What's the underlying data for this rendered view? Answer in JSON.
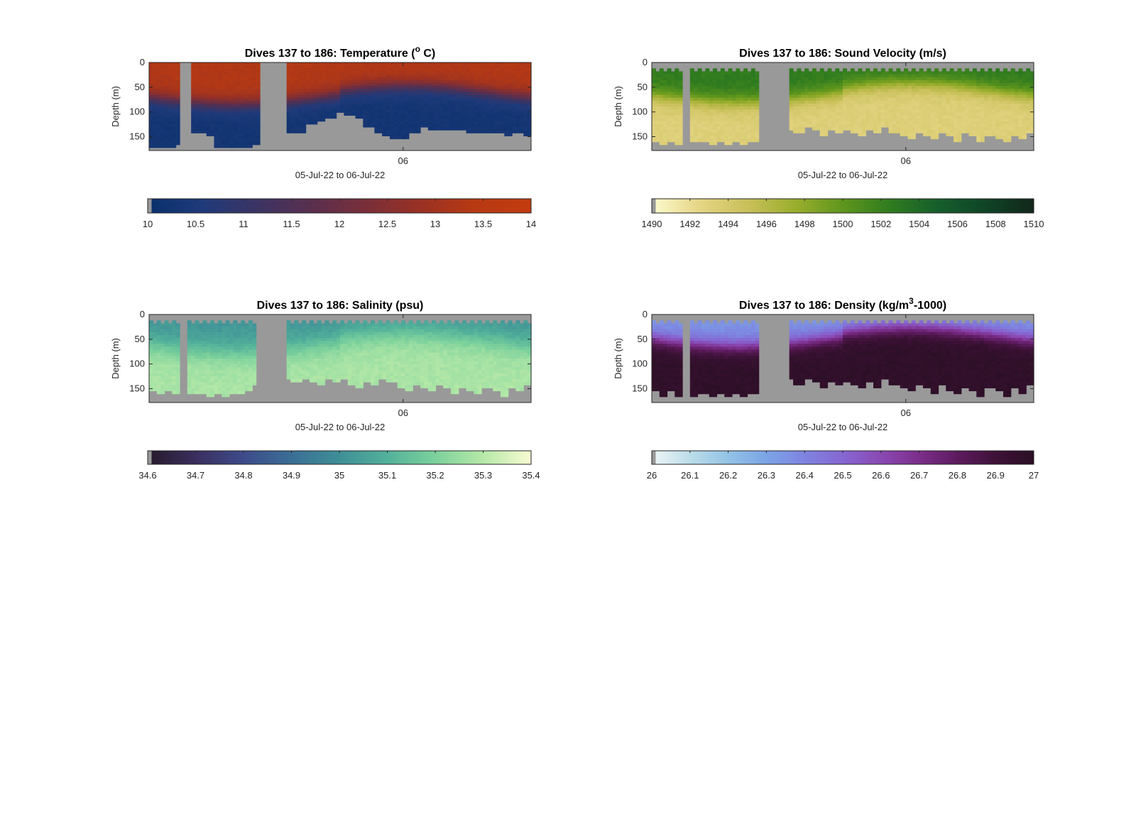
{
  "figure": {
    "background": "#ffffff",
    "missing_color": "#999999",
    "xtick": "06",
    "xlabel": "05-Jul-22 to 06-Jul-22"
  },
  "chart_data": [
    {
      "type": "heatmap",
      "title_parts": [
        "Dives 137 to 186: Temperature (",
        "o",
        " C)"
      ],
      "title_styles": [
        "normal",
        "sup",
        "normal"
      ],
      "ylabel": "Depth (m)",
      "yticks": [
        "0",
        "50",
        "100",
        "150"
      ],
      "ylim": [
        0,
        178
      ],
      "ydir": "reverse",
      "xtick_labels": [
        "06"
      ],
      "xlabel": "05-Jul-22 to 06-Jul-22",
      "colorbar": {
        "range": [
          10,
          14
        ],
        "ticks": [
          "10",
          "10.5",
          "11",
          "11.5",
          "12",
          "12.5",
          "13",
          "13.5",
          "14"
        ],
        "colors": [
          "#08306b",
          "#1f3a7a",
          "#3b3463",
          "#5a2f4e",
          "#7a2f39",
          "#9a3123",
          "#b83a13",
          "#c23b0e"
        ]
      },
      "surface_value": 13.3,
      "deep_value": 10.3,
      "cline_depth": 70,
      "cline_width": 35,
      "gaps": [
        [
          0.085,
          0.108
        ],
        [
          0.29,
          0.36
        ]
      ],
      "profile_bottoms": [
        170,
        170,
        170,
        168,
        140,
        145,
        150,
        175,
        175,
        173,
        172,
        168,
        150,
        148,
        145,
        144,
        140,
        125,
        120,
        115,
        100,
        105,
        110,
        130,
        145,
        150,
        152,
        153,
        140,
        128,
        135,
        138,
        138,
        137,
        140,
        140,
        143,
        142,
        147,
        145,
        148
      ]
    },
    {
      "type": "heatmap",
      "title_parts": [
        "Dives 137 to 186: Sound Velocity (m/s)"
      ],
      "title_styles": [
        "normal"
      ],
      "ylabel": "Depth (m)",
      "yticks": [
        "0",
        "50",
        "100",
        "150"
      ],
      "ylim": [
        0,
        178
      ],
      "ydir": "reverse",
      "xtick_labels": [
        "06"
      ],
      "xlabel": "05-Jul-22 to 06-Jul-22",
      "colorbar": {
        "range": [
          1490,
          1510
        ],
        "ticks": [
          "1490",
          "1492",
          "1494",
          "1496",
          "1498",
          "1500",
          "1502",
          "1504",
          "1506",
          "1508",
          "1510"
        ],
        "colors": [
          "#fdfbd0",
          "#e5d585",
          "#c9c05a",
          "#9aae2c",
          "#5f961d",
          "#2f7b1f",
          "#165e2c",
          "#0f4426",
          "#12261a"
        ]
      },
      "surface_value": 1502.5,
      "deep_value": 1493.2,
      "cline_depth": 65,
      "cline_width": 40,
      "gaps": [
        [
          0.08,
          0.1
        ],
        [
          0.28,
          0.36
        ]
      ],
      "profile_bottoms": [
        160,
        165,
        160,
        165,
        158,
        163,
        158,
        164,
        160,
        166,
        160,
        164,
        158,
        162,
        150,
        136,
        142,
        134,
        140,
        132,
        138,
        146,
        135,
        142,
        134,
        140,
        148,
        136,
        144,
        132,
        140,
        146,
        152,
        140,
        148,
        156,
        142,
        150,
        158,
        144,
        150,
        160,
        148,
        154,
        162,
        150,
        156,
        145
      ]
    },
    {
      "type": "heatmap",
      "title_parts": [
        "Dives 137 to 186: Salinity (psu)"
      ],
      "title_styles": [
        "normal"
      ],
      "ylabel": "Depth (m)",
      "yticks": [
        "0",
        "50",
        "100",
        "150"
      ],
      "ylim": [
        0,
        178
      ],
      "ydir": "reverse",
      "xtick_labels": [
        "06"
      ],
      "xlabel": "05-Jul-22 to 06-Jul-22",
      "colorbar": {
        "range": [
          34.6,
          35.4
        ],
        "ticks": [
          "34.6",
          "34.7",
          "34.8",
          "34.9",
          "35",
          "35.1",
          "35.2",
          "35.3",
          "35.4"
        ],
        "colors": [
          "#261a2b",
          "#3a2e5e",
          "#3d4b8a",
          "#3a6e95",
          "#3f8f97",
          "#52b19a",
          "#7cd19c",
          "#b6e9a8",
          "#f9fbd3"
        ]
      },
      "surface_value": 35.02,
      "deep_value": 35.28,
      "cline_depth": 60,
      "cline_width": 60,
      "gaps": [
        [
          0.082,
          0.102
        ],
        [
          0.28,
          0.36
        ]
      ],
      "profile_bottoms": [
        155,
        162,
        155,
        162,
        155,
        163,
        158,
        165,
        160,
        165,
        158,
        162,
        155,
        140,
        145,
        135,
        140,
        130,
        136,
        128,
        135,
        142,
        130,
        138,
        132,
        140,
        148,
        136,
        144,
        130,
        138,
        146,
        152,
        140,
        148,
        156,
        142,
        150,
        160,
        146,
        152,
        162,
        148,
        155,
        165,
        150,
        156,
        145
      ]
    },
    {
      "type": "heatmap",
      "title_parts": [
        "Dives 137 to 186: Density (kg/m",
        "3",
        "-1000)"
      ],
      "title_styles": [
        "normal",
        "sup",
        "normal"
      ],
      "ylabel": "Depth (m)",
      "yticks": [
        "0",
        "50",
        "100",
        "150"
      ],
      "ylim": [
        0,
        178
      ],
      "ydir": "reverse",
      "xtick_labels": [
        "06"
      ],
      "xlabel": "05-Jul-22 to 06-Jul-22",
      "colorbar": {
        "range": [
          26,
          27
        ],
        "ticks": [
          "26",
          "26.1",
          "26.2",
          "26.3",
          "26.4",
          "26.5",
          "26.6",
          "26.7",
          "26.8",
          "26.9",
          "27"
        ],
        "colors": [
          "#eef6f7",
          "#bcdde8",
          "#93c3e6",
          "#7ca4e6",
          "#7e84e0",
          "#8667d2",
          "#8a49b3",
          "#7b2e8a",
          "#5d1b5e",
          "#3e1238",
          "#2a0f24"
        ]
      },
      "surface_value": 26.35,
      "deep_value": 26.97,
      "cline_depth": 50,
      "cline_width": 40,
      "gaps": [
        [
          0.08,
          0.1
        ],
        [
          0.28,
          0.36
        ]
      ],
      "profile_bottoms": [
        155,
        165,
        155,
        165,
        158,
        168,
        160,
        168,
        162,
        168,
        160,
        165,
        158,
        163,
        150,
        136,
        142,
        132,
        140,
        130,
        138,
        146,
        134,
        142,
        134,
        140,
        150,
        136,
        146,
        132,
        142,
        148,
        155,
        140,
        150,
        160,
        144,
        152,
        162,
        146,
        154,
        164,
        150,
        156,
        168,
        150,
        158,
        145
      ]
    }
  ]
}
